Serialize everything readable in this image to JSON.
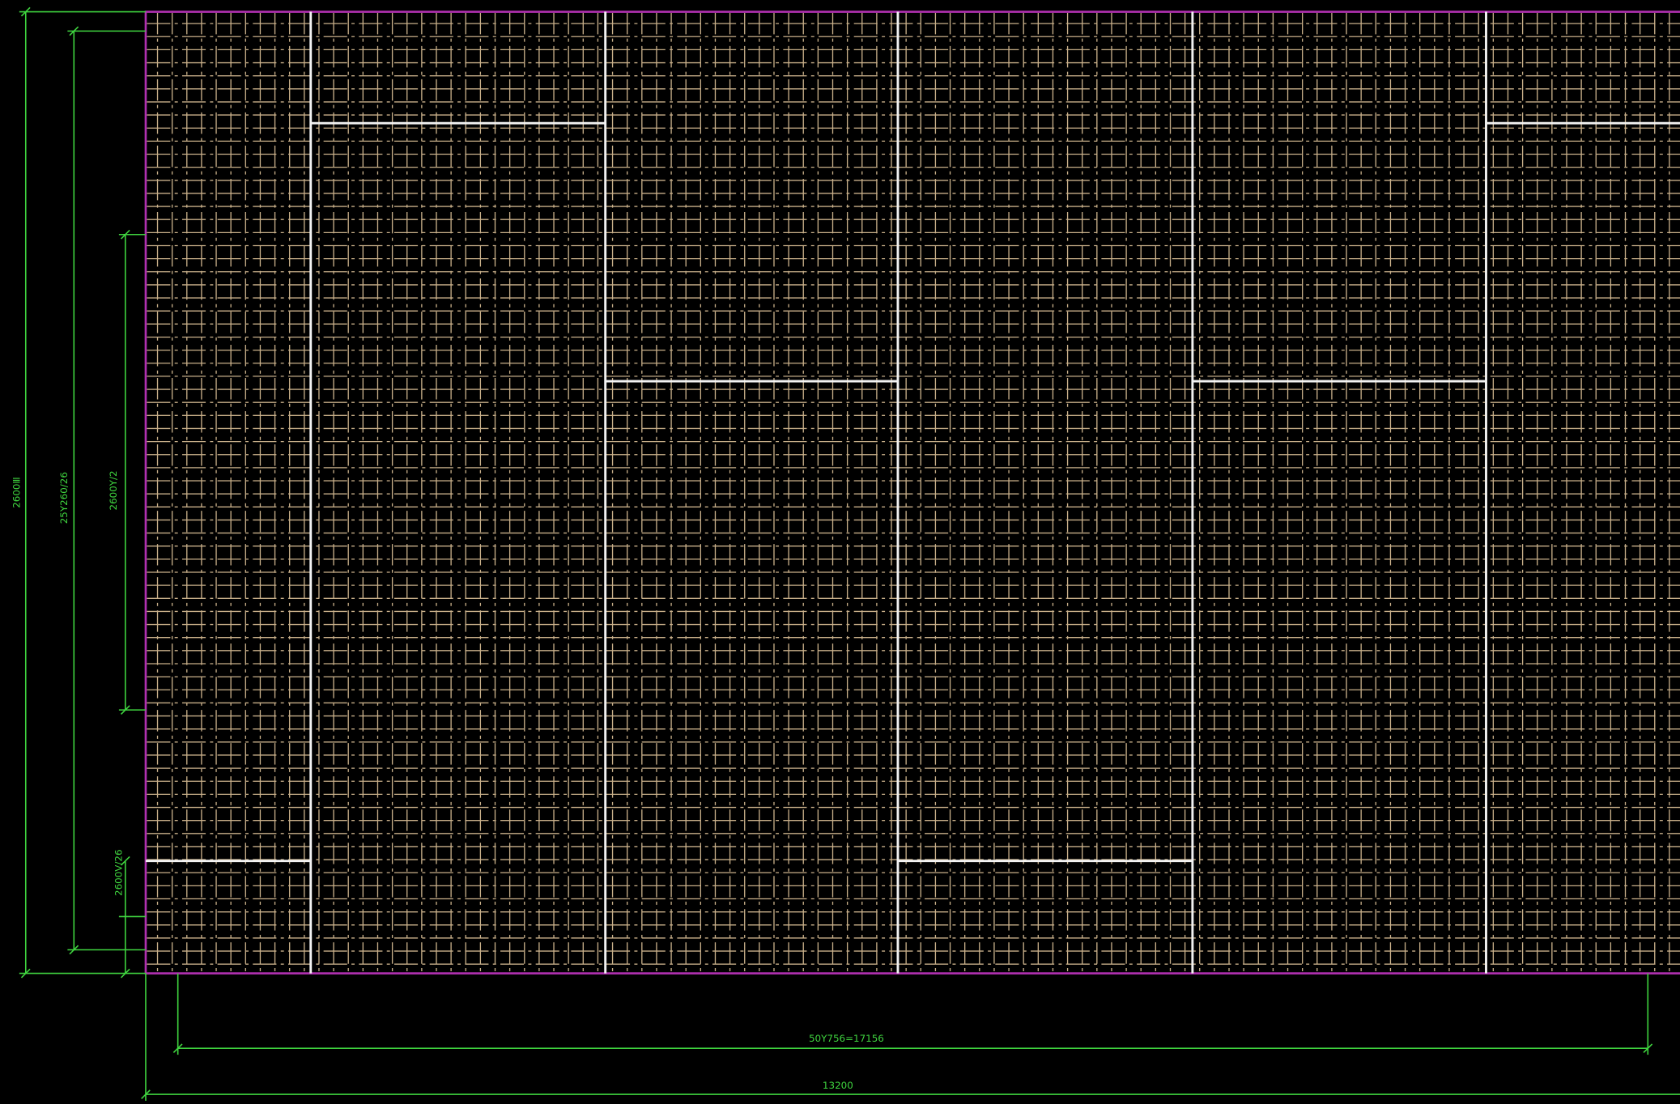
{
  "dimensions": {
    "left": [
      "2600Ⅲ",
      "25Y260/26",
      "2600Y/2",
      "2600V/26"
    ],
    "bottom": [
      "50Y756=17156",
      "13200"
    ]
  }
}
